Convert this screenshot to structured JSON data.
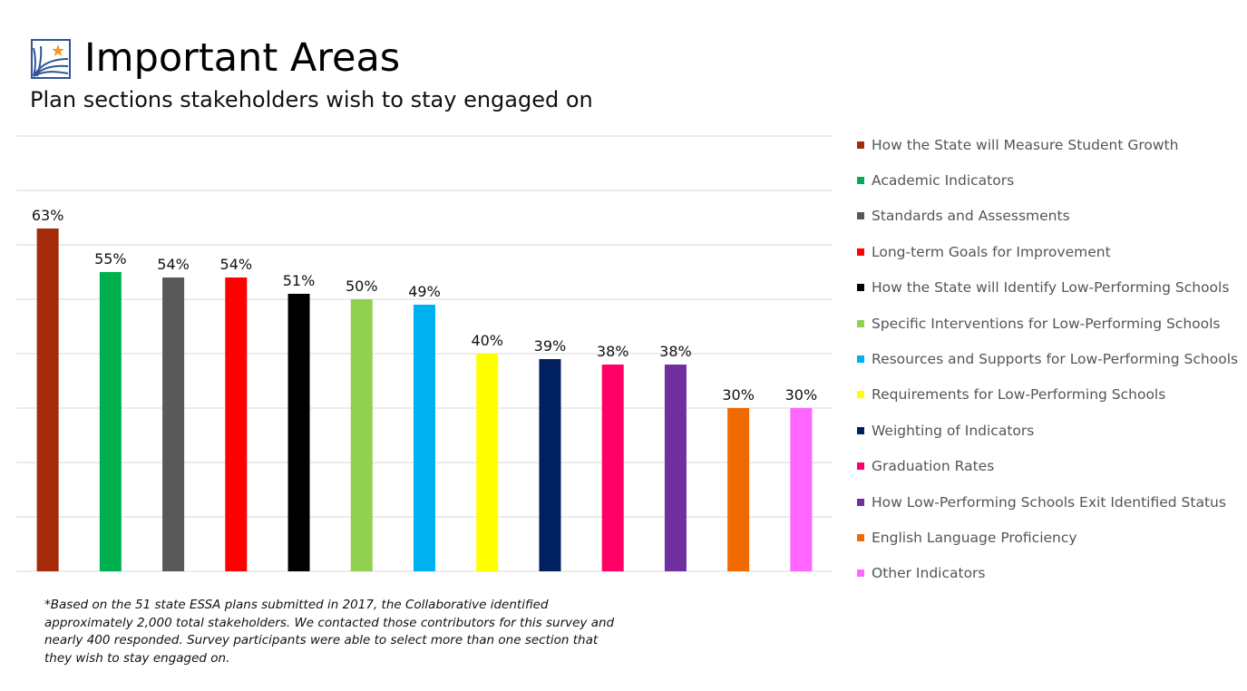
{
  "header": {
    "title": "Important Areas",
    "subtitle": "Plan sections stakeholders wish to stay engaged on"
  },
  "colors": {
    "logo_blue": "#2e5597",
    "logo_star": "#f39a1e",
    "gridline": "#d9d9d9"
  },
  "chart_data": {
    "type": "bar",
    "title": "",
    "xlabel": "",
    "ylabel": "",
    "ylim": [
      0,
      0.8
    ],
    "grid": true,
    "legend": "right",
    "value_format": "percent",
    "categories": [
      "How the State will Measure Student Growth",
      "Academic Indicators",
      "Standards and Assessments",
      "Long-term Goals for Improvement",
      "How the State will Identify Low-Performing Schools",
      "Specific Interventions for Low-Performing Schools",
      "Resources and Supports for Low-Performing Schools",
      "Requirements for Low-Performing Schools",
      "Weighting of Indicators",
      "Graduation Rates",
      "How Low-Performing Schools Exit Identified Status",
      "English Language Proficiency",
      "Other Indicators"
    ],
    "values": [
      0.63,
      0.55,
      0.54,
      0.54,
      0.51,
      0.5,
      0.49,
      0.4,
      0.39,
      0.38,
      0.38,
      0.3,
      0.3
    ],
    "labels": [
      "63%",
      "55%",
      "54%",
      "54%",
      "51%",
      "50%",
      "49%",
      "40%",
      "39%",
      "38%",
      "38%",
      "30%",
      "30%"
    ],
    "colors": [
      "#a52a0a",
      "#00b050",
      "#595959",
      "#ff0000",
      "#000000",
      "#92d050",
      "#00b0f0",
      "#ffff00",
      "#002060",
      "#ff0066",
      "#7030a0",
      "#f06a00",
      "#ff66ff"
    ]
  },
  "footnote": "*Based on the 51 state ESSA plans submitted in 2017, the Collaborative identified approximately 2,000 total stakeholders. We contacted those contributors for this survey and nearly 400 responded. Survey participants were able to select more than one section that they wish to stay engaged on."
}
